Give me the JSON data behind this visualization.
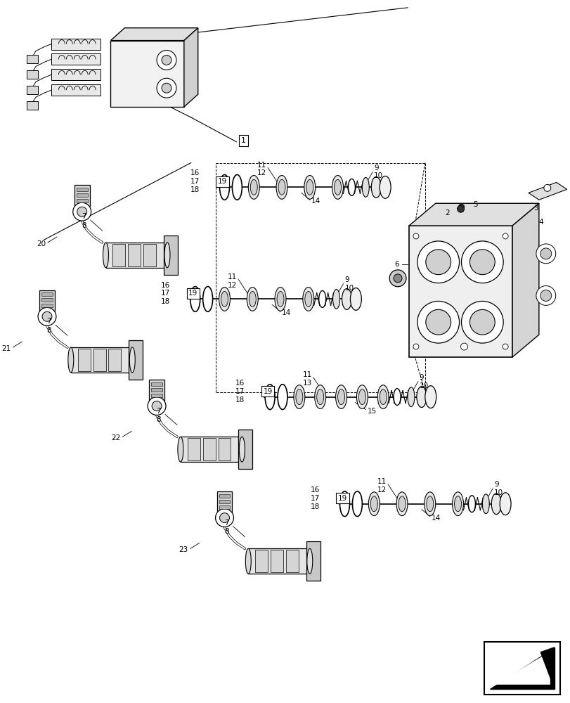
{
  "background": "#ffffff",
  "line_color": "#000000",
  "figsize": [
    8.12,
    10.0
  ],
  "dpi": 100,
  "lw_main": 0.9,
  "lw_thin": 0.6,
  "fs_label": 7.5
}
